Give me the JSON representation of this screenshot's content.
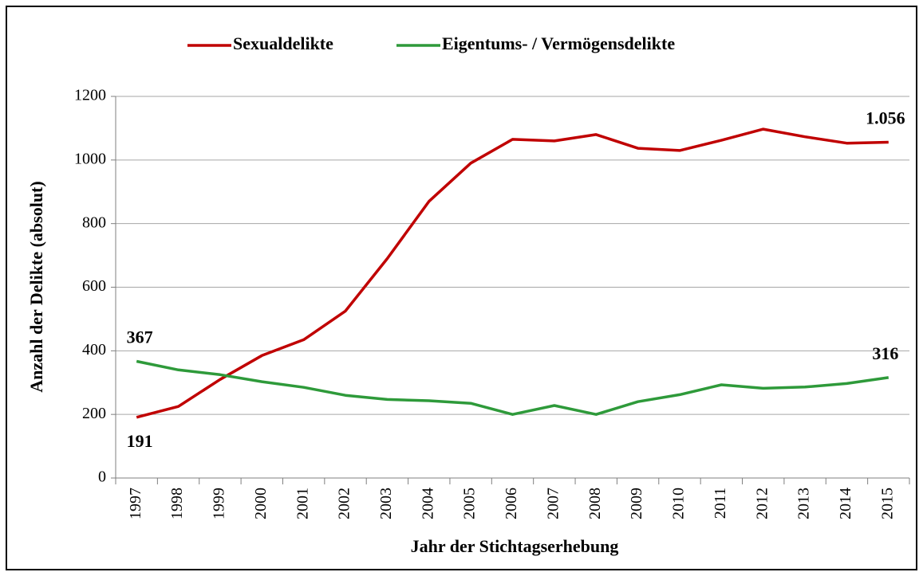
{
  "chart_data": {
    "type": "line",
    "categories": [
      "1997",
      "1998",
      "1999",
      "2000",
      "2001",
      "2002",
      "2003",
      "2004",
      "2005",
      "2006",
      "2007",
      "2008",
      "2009",
      "2010",
      "2011",
      "2012",
      "2013",
      "2014",
      "2015"
    ],
    "series": [
      {
        "name": "Sexualdelikte",
        "color": "#c00000",
        "values": [
          191,
          225,
          310,
          385,
          435,
          525,
          690,
          870,
          990,
          1065,
          1060,
          1080,
          1037,
          1030,
          1062,
          1097,
          1073,
          1053,
          1056
        ],
        "value_labels": [
          "191",
          null,
          null,
          null,
          null,
          null,
          null,
          null,
          null,
          null,
          null,
          null,
          null,
          null,
          null,
          null,
          null,
          null,
          "1.056"
        ]
      },
      {
        "name": "Eigentums- / Vermögensdelikte",
        "color": "#2e9a3a",
        "values": [
          367,
          340,
          325,
          303,
          285,
          260,
          247,
          243,
          235,
          200,
          228,
          200,
          240,
          262,
          293,
          282,
          286,
          297,
          316
        ],
        "value_labels": [
          "367",
          null,
          null,
          null,
          null,
          null,
          null,
          null,
          null,
          null,
          null,
          null,
          null,
          null,
          null,
          null,
          null,
          null,
          "316"
        ]
      }
    ],
    "x_label": "Jahr der Stichtagserhebung",
    "y_label": "Anzahl der Delikte (absolut)",
    "ylim": [
      0,
      1200
    ],
    "yticks": [
      0,
      200,
      400,
      600,
      800,
      1000,
      1200
    ],
    "grid": true,
    "legend": "top"
  }
}
